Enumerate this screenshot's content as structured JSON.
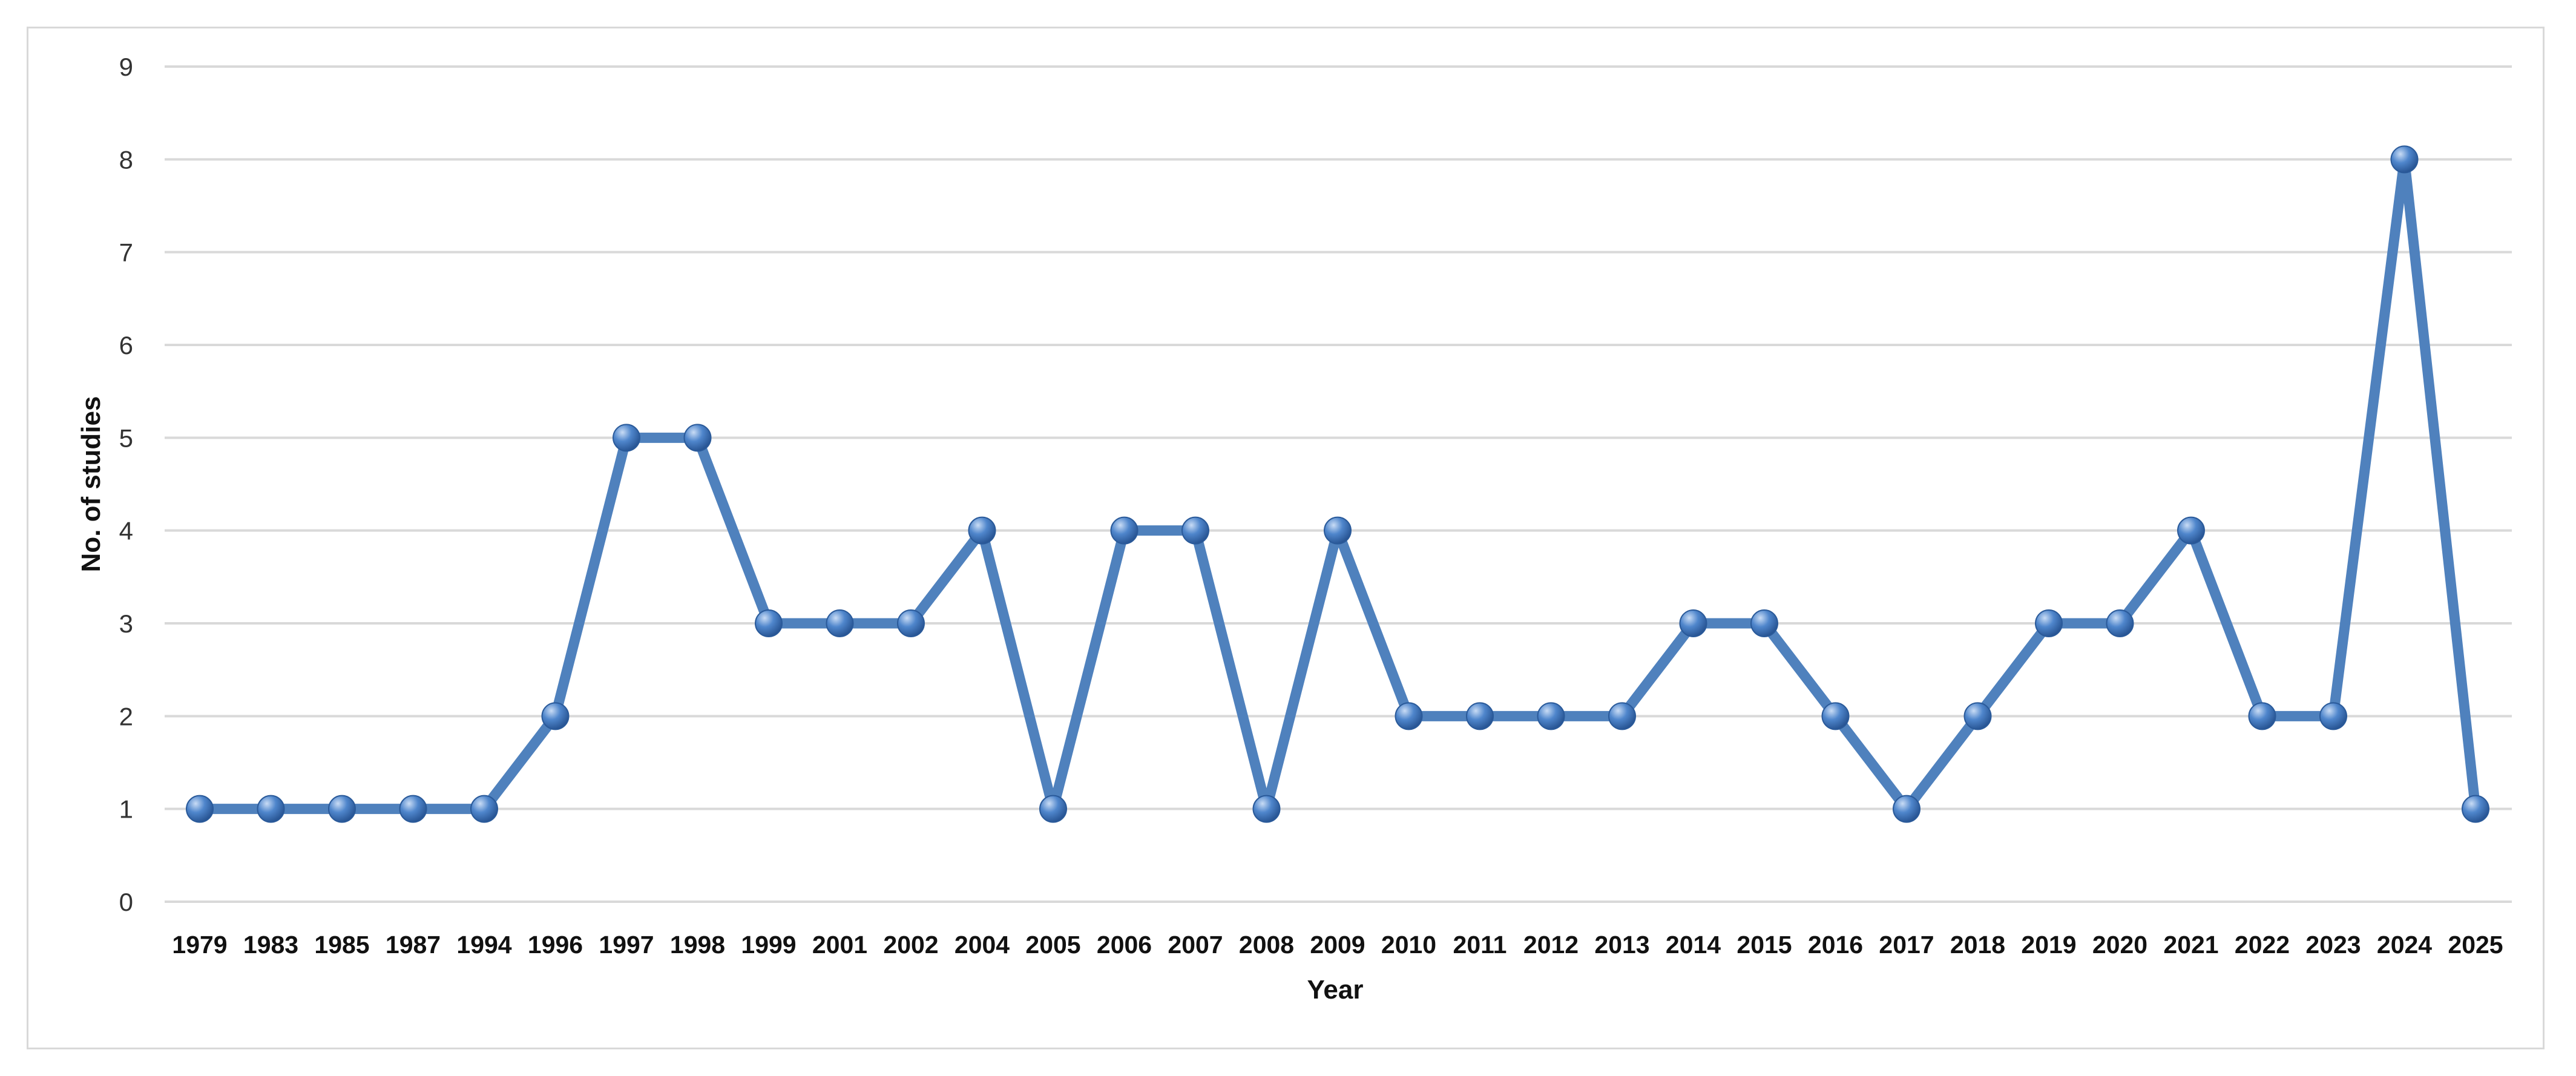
{
  "chart_data": {
    "type": "line",
    "xlabel": "Year",
    "ylabel": "No. of studies",
    "ylim": [
      0,
      9
    ],
    "yticks": [
      "0",
      "1",
      "2",
      "3",
      "4",
      "5",
      "6",
      "7",
      "8",
      "9"
    ],
    "grid": true,
    "legend": "none",
    "series_color": "#4f81bd",
    "marker_color": "#3f78c2",
    "categories": [
      "1979",
      "1983",
      "1985",
      "1987",
      "1994",
      "1996",
      "1997",
      "1998",
      "1999",
      "2001",
      "2002",
      "2004",
      "2005",
      "2006",
      "2007",
      "2008",
      "2009",
      "2010",
      "2011",
      "2012",
      "2013",
      "2014",
      "2015",
      "2016",
      "2017",
      "2018",
      "2019",
      "2020",
      "2021",
      "2022",
      "2023",
      "2024",
      "2025"
    ],
    "series": [
      {
        "values": [
          1,
          1,
          1,
          1,
          1,
          2,
          5,
          5,
          3,
          3,
          3,
          4,
          1,
          4,
          4,
          1,
          4,
          2,
          2,
          2,
          2,
          3,
          3,
          2,
          1,
          2,
          3,
          3,
          4,
          2,
          2,
          8,
          1
        ]
      }
    ]
  }
}
